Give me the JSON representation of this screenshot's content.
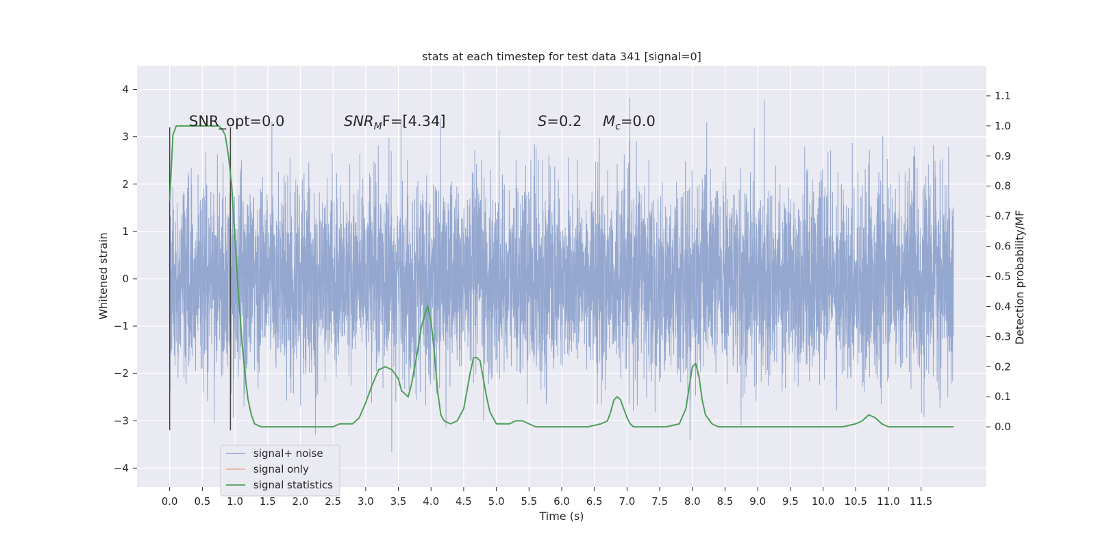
{
  "chart_data": {
    "type": "line",
    "title": "stats at each timestep for test data 341 [signal=0]",
    "xlabel": "Time (s)",
    "ylabel_left": "Whitened strain",
    "ylabel_right": "Detection probability/MF",
    "xlim": [
      -0.5,
      12.5
    ],
    "ylim_left": [
      -4.4,
      4.5
    ],
    "ylim_right": [
      -0.2,
      1.2
    ],
    "x_ticks": [
      "0.0",
      "0.5",
      "1.0",
      "1.5",
      "2.0",
      "2.5",
      "3.0",
      "3.5",
      "4.0",
      "4.5",
      "5.0",
      "5.5",
      "6.0",
      "6.5",
      "7.0",
      "7.5",
      "8.0",
      "8.5",
      "9.0",
      "9.5",
      "10.0",
      "10.5",
      "11.0",
      "11.5"
    ],
    "y_ticks_left": [
      "4",
      "3",
      "2",
      "1",
      "0",
      "−1",
      "−2",
      "−3",
      "−4"
    ],
    "y_ticks_right": [
      "1.1",
      "1.0",
      "0.9",
      "0.8",
      "0.7",
      "0.6",
      "0.5",
      "0.4",
      "0.3",
      "0.2",
      "0.1",
      "0.0"
    ],
    "grid": true,
    "legend_position": "lower-left",
    "annotations": {
      "snr_opt": "SNR_opt=0.0",
      "snr_mf_main": "SNR",
      "snr_mf_sub": "M",
      "snr_mf_rest": "F=[4.34]",
      "s_main": "S",
      "s_rest": "=0.2",
      "mc_main": "M",
      "mc_sub": "c",
      "mc_rest": "=0.0"
    },
    "marker_lines_x": [
      0.0,
      0.93
    ],
    "series": [
      {
        "name": "signal+ noise",
        "color": "#8fa3cc",
        "description_level": "whitened noise, roughly Gaussian, |amplitude| up to ~4",
        "x_range": [
          0.0,
          12.0
        ]
      },
      {
        "name": "signal only",
        "color": "#e8a58a",
        "values": []
      },
      {
        "name": "signal statistics",
        "color": "#4c9f57",
        "x": [
          0.0,
          0.05,
          0.1,
          0.15,
          0.2,
          0.3,
          0.4,
          0.5,
          0.6,
          0.7,
          0.75,
          0.8,
          0.85,
          0.9,
          0.95,
          1.0,
          1.05,
          1.1,
          1.15,
          1.2,
          1.25,
          1.3,
          1.4,
          1.5,
          2.0,
          2.5,
          2.6,
          2.7,
          2.8,
          2.9,
          3.0,
          3.1,
          3.2,
          3.3,
          3.4,
          3.5,
          3.55,
          3.6,
          3.65,
          3.7,
          3.75,
          3.8,
          3.85,
          3.9,
          3.95,
          4.0,
          4.05,
          4.1,
          4.15,
          4.2,
          4.3,
          4.4,
          4.5,
          4.55,
          4.6,
          4.65,
          4.7,
          4.75,
          4.8,
          4.85,
          4.9,
          5.0,
          5.1,
          5.2,
          5.3,
          5.4,
          5.5,
          5.6,
          5.7,
          5.8,
          6.0,
          6.2,
          6.4,
          6.6,
          6.7,
          6.75,
          6.8,
          6.85,
          6.9,
          6.95,
          7.0,
          7.05,
          7.1,
          7.2,
          7.4,
          7.6,
          7.8,
          7.9,
          7.95,
          8.0,
          8.05,
          8.1,
          8.15,
          8.2,
          8.3,
          8.4,
          8.5,
          9.0,
          9.5,
          10.0,
          10.3,
          10.5,
          10.6,
          10.7,
          10.8,
          10.9,
          11.0,
          11.5,
          12.0
        ],
        "y": [
          0.75,
          0.97,
          1.0,
          1.0,
          1.0,
          1.0,
          1.0,
          1.0,
          1.0,
          1.0,
          1.0,
          0.99,
          0.97,
          0.9,
          0.8,
          0.62,
          0.45,
          0.3,
          0.18,
          0.09,
          0.04,
          0.01,
          0.0,
          0.0,
          0.0,
          0.0,
          0.01,
          0.01,
          0.01,
          0.03,
          0.08,
          0.14,
          0.19,
          0.2,
          0.19,
          0.16,
          0.12,
          0.11,
          0.1,
          0.14,
          0.2,
          0.26,
          0.33,
          0.37,
          0.4,
          0.35,
          0.25,
          0.12,
          0.04,
          0.02,
          0.01,
          0.02,
          0.06,
          0.12,
          0.18,
          0.23,
          0.23,
          0.22,
          0.16,
          0.1,
          0.05,
          0.01,
          0.01,
          0.01,
          0.02,
          0.02,
          0.01,
          0.0,
          0.0,
          0.0,
          0.0,
          0.0,
          0.0,
          0.01,
          0.02,
          0.05,
          0.09,
          0.1,
          0.09,
          0.06,
          0.03,
          0.01,
          0.0,
          0.0,
          0.0,
          0.0,
          0.01,
          0.06,
          0.13,
          0.2,
          0.21,
          0.17,
          0.09,
          0.04,
          0.01,
          0.0,
          0.0,
          0.0,
          0.0,
          0.0,
          0.0,
          0.01,
          0.02,
          0.04,
          0.03,
          0.01,
          0.0,
          0.0,
          0.0
        ]
      }
    ]
  }
}
